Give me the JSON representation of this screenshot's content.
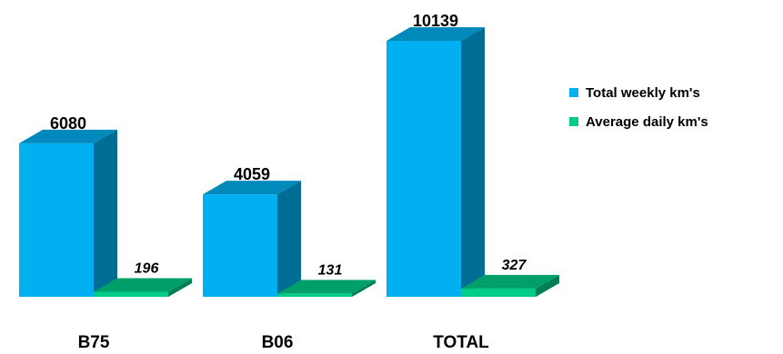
{
  "chart_data": {
    "type": "bar",
    "style": "3d-clustered-column",
    "categories": [
      "B75",
      "B06",
      "TOTAL"
    ],
    "series": [
      {
        "name": "Total weekly km's",
        "values": [
          6080,
          4059,
          10139
        ],
        "color": "#00b0f0",
        "label_style": "bold"
      },
      {
        "name": "Average daily km's",
        "values": [
          196,
          131,
          327
        ],
        "color": "#00cc88",
        "label_style": "bold-italic"
      }
    ],
    "title": "",
    "xlabel": "",
    "ylabel": "",
    "ylim": [
      0,
      10139
    ],
    "grid": false,
    "legend": "right"
  }
}
